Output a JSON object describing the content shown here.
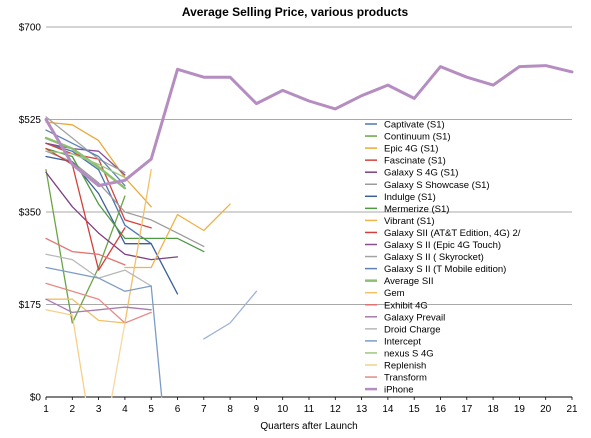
{
  "chart_data": {
    "type": "line",
    "title": "Average Selling Price, various products",
    "xlabel": "Quarters after Launch",
    "ylabel": "",
    "xlim": [
      1,
      21
    ],
    "ylim": [
      0,
      700
    ],
    "x_ticks": [
      1,
      2,
      3,
      4,
      5,
      6,
      7,
      8,
      9,
      10,
      11,
      12,
      13,
      14,
      15,
      16,
      17,
      18,
      19,
      20,
      21
    ],
    "y_ticks": [
      {
        "value": 0,
        "label": "$0"
      },
      {
        "value": 175,
        "label": "$175"
      },
      {
        "value": 350,
        "label": "$350"
      },
      {
        "value": 525,
        "label": "$525"
      },
      {
        "value": 700,
        "label": "$700"
      }
    ],
    "grid": "horizontal",
    "legend_position": "right",
    "series": [
      {
        "name": "Captivate (S1)",
        "color": "#4a77b5",
        "width": 1.3,
        "points": [
          [
            1,
            480
          ],
          [
            2,
            465
          ],
          [
            3,
            430
          ],
          [
            4,
            325
          ],
          [
            5,
            290
          ]
        ]
      },
      {
        "name": "Continuum (S1)",
        "color": "#6aa444",
        "width": 1.3,
        "points": [
          [
            1,
            430
          ],
          [
            2,
            140
          ],
          [
            3,
            245
          ],
          [
            4,
            380
          ]
        ]
      },
      {
        "name": "Epic 4G (S1)",
        "color": "#e9a93c",
        "width": 1.3,
        "points": [
          [
            1,
            520
          ],
          [
            2,
            515
          ],
          [
            3,
            485
          ],
          [
            4,
            415
          ],
          [
            5,
            360
          ]
        ]
      },
      {
        "name": "Fascinate (S1)",
        "color": "#d5433c",
        "width": 1.3,
        "points": [
          [
            1,
            480
          ],
          [
            2,
            460
          ],
          [
            3,
            450
          ],
          [
            4,
            335
          ],
          [
            5,
            320
          ]
        ]
      },
      {
        "name": "Galaxy S 4G (S1)",
        "color": "#7d3f83",
        "width": 1.3,
        "points": [
          [
            1,
            425
          ],
          [
            2,
            360
          ],
          [
            3,
            310
          ],
          [
            4,
            270
          ],
          [
            5,
            260
          ],
          [
            6,
            265
          ]
        ]
      },
      {
        "name": "Galaxy S Showcase (S1)",
        "color": "#9b9b9b",
        "width": 1.3,
        "points": [
          [
            1,
            465
          ],
          [
            2,
            445
          ],
          [
            3,
            405
          ],
          [
            4,
            350
          ],
          [
            5,
            335
          ],
          [
            6,
            310
          ],
          [
            7,
            285
          ]
        ]
      },
      {
        "name": "Indulge (S1)",
        "color": "#3a5f9a",
        "width": 1.3,
        "points": [
          [
            1,
            455
          ],
          [
            2,
            445
          ],
          [
            3,
            385
          ],
          [
            4,
            290
          ],
          [
            5,
            290
          ],
          [
            6,
            195
          ]
        ]
      },
      {
        "name": "Mermerize (S1)",
        "color": "#4e9a45",
        "width": 1.3,
        "points": [
          [
            1,
            470
          ],
          [
            2,
            455
          ],
          [
            3,
            365
          ],
          [
            4,
            300
          ],
          [
            5,
            300
          ],
          [
            6,
            300
          ],
          [
            7,
            275
          ]
        ]
      },
      {
        "name": "Vibrant (S1)",
        "color": "#f0b24a",
        "width": 1.3,
        "points": [
          [
            4,
            245
          ],
          [
            5,
            245
          ],
          [
            6,
            345
          ],
          [
            7,
            315
          ],
          [
            8,
            365
          ]
        ]
      },
      {
        "name": "Galaxy SII (AT&T Edition, 4G) 2/",
        "color": "#d2403a",
        "width": 1.3,
        "points": [
          [
            1,
            470
          ],
          [
            2,
            440
          ],
          [
            3,
            240
          ],
          [
            4,
            320
          ]
        ]
      },
      {
        "name": "Galaxy S II (Epic 4G Touch)",
        "color": "#8a4c93",
        "width": 1.3,
        "points": [
          [
            1,
            480
          ],
          [
            2,
            470
          ],
          [
            3,
            465
          ],
          [
            4,
            420
          ]
        ]
      },
      {
        "name": "Galaxy S II ( Skyrocket)",
        "color": "#a3a3a3",
        "width": 1.3,
        "points": [
          [
            1,
            530
          ],
          [
            2,
            490
          ],
          [
            3,
            450
          ],
          [
            4,
            425
          ]
        ]
      },
      {
        "name": "Galaxy S II (T Mobile edition)",
        "color": "#5d81b5",
        "width": 1.3,
        "points": [
          [
            1,
            505
          ],
          [
            2,
            480
          ],
          [
            3,
            455
          ],
          [
            4,
            400
          ]
        ]
      },
      {
        "name": "Average SII",
        "color": "#8cc06e",
        "width": 2.5,
        "points": [
          [
            1,
            490
          ],
          [
            2,
            470
          ],
          [
            3,
            435
          ],
          [
            4,
            395
          ]
        ]
      },
      {
        "name": "Gem",
        "color": "#f2c067",
        "width": 1.3,
        "points": [
          [
            1,
            185
          ],
          [
            2,
            185
          ],
          [
            3,
            145
          ],
          [
            4,
            140
          ],
          [
            5,
            430
          ]
        ]
      },
      {
        "name": "Exhibit 4G",
        "color": "#e07370",
        "width": 1.3,
        "points": [
          [
            1,
            300
          ],
          [
            2,
            275
          ],
          [
            3,
            270
          ],
          [
            4,
            250
          ]
        ]
      },
      {
        "name": "Galaxy Prevail",
        "color": "#a87bb1",
        "width": 1.3,
        "points": [
          [
            1,
            185
          ],
          [
            2,
            160
          ],
          [
            3,
            165
          ],
          [
            4,
            170
          ],
          [
            5,
            165
          ]
        ]
      },
      {
        "name": "Droid Charge",
        "color": "#b8b8b8",
        "width": 1.3,
        "points": [
          [
            1,
            270
          ],
          [
            2,
            260
          ],
          [
            3,
            225
          ],
          [
            4,
            240
          ],
          [
            5,
            210
          ]
        ]
      },
      {
        "name": "Intercept",
        "color": "#7c9cc7",
        "width": 1.3,
        "points": [
          [
            1,
            245
          ],
          [
            2,
            235
          ],
          [
            3,
            225
          ],
          [
            4,
            200
          ],
          [
            5,
            210
          ],
          [
            5.4,
            0
          ]
        ]
      },
      {
        "name": "nexus S 4G",
        "color": "#9ac77e",
        "width": 1.3,
        "points": [
          [
            1,
            465
          ],
          [
            2,
            460
          ],
          [
            3,
            440
          ],
          [
            4,
            415
          ]
        ]
      },
      {
        "name": "Replenish",
        "color": "#f6d08a",
        "width": 1.3,
        "points": [
          [
            1,
            165
          ],
          [
            2,
            155
          ],
          [
            2.5,
            0
          ]
        ]
      },
      {
        "name": "Transform",
        "color": "#e58b87",
        "width": 1.3,
        "points": [
          [
            1,
            215
          ],
          [
            2,
            200
          ],
          [
            3,
            185
          ],
          [
            4,
            140
          ],
          [
            5,
            160
          ]
        ]
      },
      {
        "name": "iPhone",
        "color": "#b68dc1",
        "width": 3,
        "points": [
          [
            1,
            525
          ],
          [
            2,
            440
          ],
          [
            3,
            400
          ],
          [
            4,
            410
          ],
          [
            5,
            450
          ],
          [
            6,
            620
          ],
          [
            7,
            605
          ],
          [
            8,
            605
          ],
          [
            9,
            555
          ],
          [
            10,
            580
          ],
          [
            11,
            560
          ],
          [
            12,
            545
          ],
          [
            13,
            570
          ],
          [
            14,
            590
          ],
          [
            15,
            565
          ],
          [
            16,
            625
          ],
          [
            17,
            605
          ],
          [
            18,
            590
          ],
          [
            19,
            625
          ],
          [
            20,
            627
          ],
          [
            21,
            615
          ]
        ]
      },
      {
        "name": "",
        "color": "#9cb1d4",
        "width": 1.3,
        "points": [
          [
            7,
            110
          ],
          [
            8,
            140
          ],
          [
            9,
            200
          ]
        ]
      },
      {
        "name": "",
        "color": "#f8d8a0",
        "width": 1.3,
        "points": [
          [
            3.5,
            0
          ],
          [
            4,
            140
          ]
        ]
      }
    ]
  }
}
